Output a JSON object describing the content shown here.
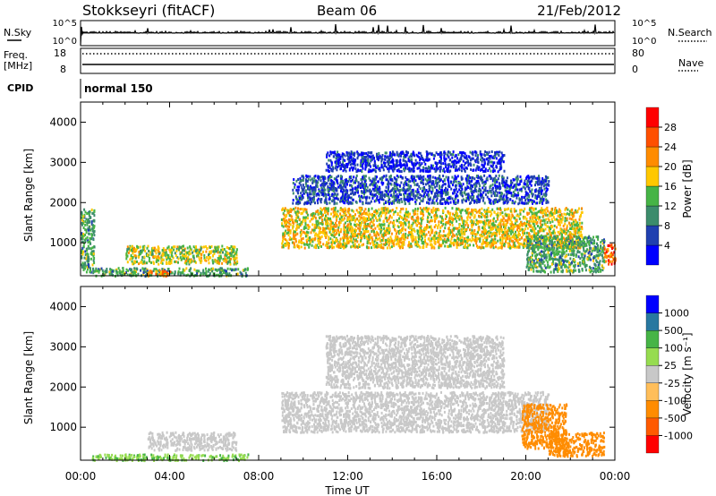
{
  "header": {
    "station": "Stokkseyri (fitACF)",
    "beam": "Beam 06",
    "date": "21/Feb/2012"
  },
  "top_panels": {
    "nsky_label": "N.Sky",
    "nsky_ticks": [
      "10^5",
      "10^0"
    ],
    "nsearch_label": "N.Search",
    "freq_label_line1": "Freq.",
    "freq_label_line2": "[MHz]",
    "freq_ticks": [
      "18",
      "8"
    ],
    "nave_label": "Nave",
    "nave_ticks": [
      "80",
      "0"
    ],
    "cpid_label": "CPID",
    "cpid_value": "normal 150"
  },
  "colors": {
    "power_scale": [
      "#0000ff",
      "#2040b0",
      "#3c8c6c",
      "#46b446",
      "#ffc800",
      "#ff8c00",
      "#ff5000",
      "#ff0000"
    ],
    "velocity_scale": [
      "#ff0000",
      "#ff5a00",
      "#ff8c00",
      "#ffbe5a",
      "#c8c8c8",
      "#96dc50",
      "#46b446",
      "#2878a0",
      "#0000ff"
    ],
    "ground_scatter": "#c8c8c8"
  },
  "chart_data": [
    {
      "type": "heatmap",
      "name": "power",
      "ylabel": "Slant Range [km]",
      "yticks": [
        "1000",
        "2000",
        "3000",
        "4000"
      ],
      "ylim": [
        180,
        4500
      ],
      "xticks": [
        "00:00",
        "04:00",
        "08:00",
        "12:00",
        "16:00",
        "20:00",
        "00:00"
      ],
      "xlim_hours": [
        0,
        24
      ],
      "colorbar_label": "Power [dB]",
      "colorbar_ticks": [
        "4",
        "8",
        "12",
        "16",
        "20",
        "24",
        "28"
      ],
      "colorbar_range": [
        0,
        32
      ],
      "features": [
        {
          "t_start": 0.0,
          "t_end": 0.6,
          "range_start": 300,
          "range_end": 1900,
          "level": 12
        },
        {
          "t_start": 0.5,
          "t_end": 7.5,
          "range_start": 200,
          "range_end": 400,
          "level": 12
        },
        {
          "t_start": 3.0,
          "t_end": 4.0,
          "range_start": 200,
          "range_end": 350,
          "level": 22
        },
        {
          "t_start": 2.0,
          "t_end": 7.0,
          "range_start": 500,
          "range_end": 950,
          "level": 16
        },
        {
          "t_start": 9.0,
          "t_end": 22.5,
          "range_start": 900,
          "range_end": 1900,
          "level": 18
        },
        {
          "t_start": 9.5,
          "t_end": 21.0,
          "range_start": 2000,
          "range_end": 2700,
          "level": 6
        },
        {
          "t_start": 11.0,
          "t_end": 19.0,
          "range_start": 2800,
          "range_end": 3300,
          "level": 4
        },
        {
          "t_start": 20.0,
          "t_end": 23.5,
          "range_start": 300,
          "range_end": 1200,
          "level": 12
        },
        {
          "t_start": 23.5,
          "t_end": 24.0,
          "range_start": 500,
          "range_end": 1000,
          "level": 24
        }
      ]
    },
    {
      "type": "heatmap",
      "name": "velocity",
      "ylabel": "Slant Range [km]",
      "yticks": [
        "1000",
        "2000",
        "3000",
        "4000"
      ],
      "ylim": [
        180,
        4500
      ],
      "xticks": [
        "00:00",
        "04:00",
        "08:00",
        "12:00",
        "16:00",
        "20:00",
        "00:00"
      ],
      "xlim_hours": [
        0,
        24
      ],
      "xlabel": "Time UT",
      "colorbar_label": "Velocity [m s⁻¹]",
      "colorbar_ticks": [
        "-1000",
        "-500",
        "-100",
        "-25",
        "25",
        "100",
        "500",
        "1000"
      ],
      "features": [
        {
          "t_start": 0.5,
          "t_end": 7.5,
          "range_start": 200,
          "range_end": 350,
          "velocity": 80
        },
        {
          "t_start": 3.0,
          "t_end": 7.0,
          "range_start": 450,
          "range_end": 900,
          "velocity": 0
        },
        {
          "t_start": 9.0,
          "t_end": 21.0,
          "range_start": 900,
          "range_end": 1900,
          "velocity": 0
        },
        {
          "t_start": 11.0,
          "t_end": 19.0,
          "range_start": 2000,
          "range_end": 3300,
          "velocity": 0
        },
        {
          "t_start": 19.8,
          "t_end": 21.8,
          "range_start": 500,
          "range_end": 1600,
          "velocity": -200
        },
        {
          "t_start": 21.0,
          "t_end": 23.5,
          "range_start": 300,
          "range_end": 900,
          "velocity": -300
        }
      ]
    }
  ]
}
